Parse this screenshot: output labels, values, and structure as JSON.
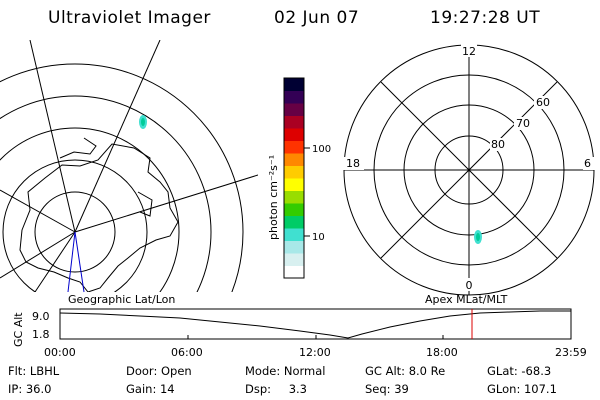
{
  "header": {
    "title": "Ultraviolet Imager",
    "date": "02 Jun 07",
    "time": "19:27:28 UT"
  },
  "geo_panel": {
    "label": "Geographic Lat/Lon"
  },
  "mlt_panel": {
    "label": "Apex MLat/MLT",
    "hour_labels": [
      "12",
      "18",
      "6",
      "0"
    ],
    "lat_labels": [
      "60",
      "70",
      "80"
    ]
  },
  "colorbar": {
    "unit_label": "photon cm⁻²s⁻¹",
    "ticks": [
      "100",
      "10"
    ],
    "colors": [
      "#ffffff",
      "#d8f0f0",
      "#a8e8e8",
      "#40e0d0",
      "#00cc66",
      "#33cc00",
      "#99dd00",
      "#ffff00",
      "#ffcc00",
      "#ff8800",
      "#ff3300",
      "#dd0000",
      "#aa0022",
      "#660044",
      "#330055",
      "#000033"
    ]
  },
  "altitude_plot": {
    "ylabel": "GC Alt",
    "ymax_label": "9.0",
    "ymin_label": "1.8",
    "x_ticks": [
      "00:00",
      "06:00",
      "12:00",
      "18:00",
      "23:59"
    ],
    "marker_time": "19:27"
  },
  "info": {
    "flt_label": "Flt:",
    "flt_value": "LBHL",
    "ip_label": "IP:",
    "ip_value": "36.0",
    "door_label": "Door:",
    "door_value": "Open",
    "gain_label": "Gain:",
    "gain_value": "14",
    "mode_label": "Mode:",
    "mode_value": "Normal",
    "dsp_label": "Dsp:",
    "dsp_value": "3.3",
    "gcalt_label": "GC Alt:",
    "gcalt_value": "8.0 Re",
    "seq_label": "Seq:",
    "seq_value": "39",
    "glat_label": "GLat:",
    "glat_value": "-68.3",
    "glon_label": "GLon:",
    "glon_value": "107.1"
  }
}
